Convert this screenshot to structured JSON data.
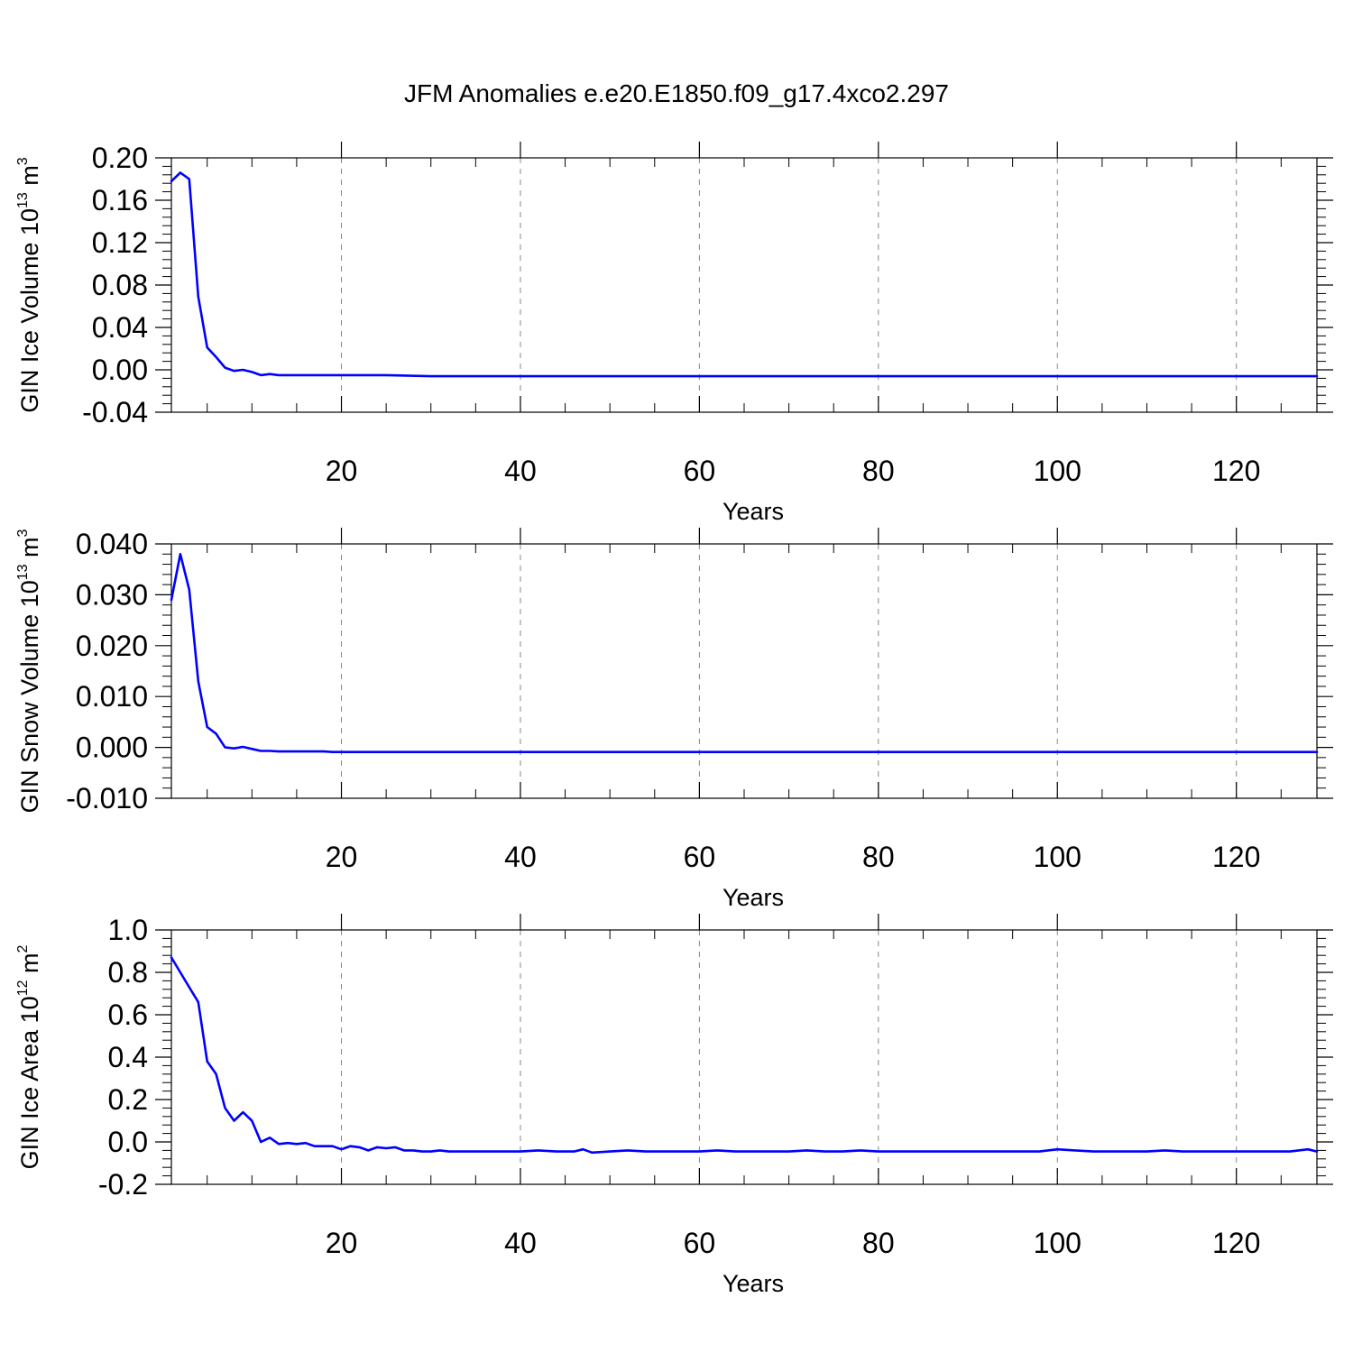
{
  "title": "JFM Anomalies e.e20.E1850.f09_g17.4xco2.297",
  "colors": {
    "line": "#0000ff",
    "axis": "#000000",
    "grid": "#888888"
  },
  "chart_data": [
    {
      "type": "line",
      "ylabel": {
        "text": "GIN Ice Volume 10",
        "sup": "13",
        "unit": " m",
        "unit_sup": "3"
      },
      "xlabel": "Years",
      "xlim": [
        1,
        129
      ],
      "ylim": [
        -0.04,
        0.2
      ],
      "xticks": [
        20,
        40,
        60,
        80,
        100,
        120
      ],
      "xtick_labels": [
        "20",
        "40",
        "60",
        "80",
        "100",
        "120"
      ],
      "yticks": [
        -0.04,
        0.0,
        0.04,
        0.08,
        0.12,
        0.16,
        0.2
      ],
      "ytick_labels": [
        "-0.04",
        "0.00",
        "0.04",
        "0.08",
        "0.12",
        "0.16",
        "0.20"
      ],
      "grid": "x-dashed",
      "series": [
        {
          "x": [
            1,
            2,
            3,
            4,
            5,
            6,
            7,
            8,
            9,
            10,
            11,
            12,
            13,
            14,
            15,
            16,
            17,
            18,
            19,
            20,
            22,
            25,
            30,
            40,
            50,
            60,
            70,
            80,
            90,
            100,
            110,
            120,
            129
          ],
          "values": [
            0.178,
            0.186,
            0.18,
            0.069,
            0.021,
            0.012,
            0.002,
            -0.001,
            0.0,
            -0.002,
            -0.005,
            -0.004,
            -0.005,
            -0.005,
            -0.005,
            -0.005,
            -0.005,
            -0.005,
            -0.005,
            -0.005,
            -0.005,
            -0.005,
            -0.006,
            -0.006,
            -0.006,
            -0.006,
            -0.006,
            -0.006,
            -0.006,
            -0.006,
            -0.006,
            -0.006,
            -0.006
          ]
        }
      ]
    },
    {
      "type": "line",
      "ylabel": {
        "text": "GIN Snow Volume 10",
        "sup": "13",
        "unit": " m",
        "unit_sup": "3"
      },
      "xlabel": "Years",
      "xlim": [
        1,
        129
      ],
      "ylim": [
        -0.01,
        0.04
      ],
      "xticks": [
        20,
        40,
        60,
        80,
        100,
        120
      ],
      "xtick_labels": [
        "20",
        "40",
        "60",
        "80",
        "100",
        "120"
      ],
      "yticks": [
        -0.01,
        0.0,
        0.01,
        0.02,
        0.03,
        0.04
      ],
      "ytick_labels": [
        "-0.010",
        "0.000",
        "0.010",
        "0.020",
        "0.030",
        "0.040"
      ],
      "grid": "x-dashed",
      "series": [
        {
          "x": [
            1,
            2,
            3,
            4,
            5,
            6,
            7,
            8,
            9,
            10,
            11,
            12,
            13,
            14,
            15,
            16,
            17,
            18,
            19,
            20,
            22,
            25,
            30,
            40,
            50,
            60,
            70,
            80,
            90,
            100,
            110,
            120,
            129
          ],
          "values": [
            0.029,
            0.038,
            0.031,
            0.013,
            0.004,
            0.0027,
            0.0,
            -0.0002,
            0.0001,
            -0.0003,
            -0.0007,
            -0.0007,
            -0.0008,
            -0.0008,
            -0.0008,
            -0.0008,
            -0.0008,
            -0.0008,
            -0.0009,
            -0.0009,
            -0.0009,
            -0.0009,
            -0.0009,
            -0.0009,
            -0.0009,
            -0.0009,
            -0.0009,
            -0.0009,
            -0.0009,
            -0.0009,
            -0.0009,
            -0.0009,
            -0.0009
          ]
        }
      ]
    },
    {
      "type": "line",
      "ylabel": {
        "text": "GIN Ice Area 10",
        "sup": "12",
        "unit": " m",
        "unit_sup": "2"
      },
      "xlabel": "Years",
      "xlim": [
        1,
        129
      ],
      "ylim": [
        -0.2,
        1.0
      ],
      "xticks": [
        20,
        40,
        60,
        80,
        100,
        120
      ],
      "xtick_labels": [
        "20",
        "40",
        "60",
        "80",
        "100",
        "120"
      ],
      "yticks": [
        -0.2,
        0.0,
        0.2,
        0.4,
        0.6,
        0.8,
        1.0
      ],
      "ytick_labels": [
        "-0.2",
        "0.0",
        "0.2",
        "0.4",
        "0.6",
        "0.8",
        "1.0"
      ],
      "grid": "x-dashed",
      "series": [
        {
          "x": [
            1,
            2,
            3,
            4,
            5,
            6,
            7,
            8,
            9,
            10,
            11,
            12,
            13,
            14,
            15,
            16,
            17,
            18,
            19,
            20,
            21,
            22,
            23,
            24,
            25,
            26,
            27,
            28,
            29,
            30,
            31,
            32,
            34,
            36,
            38,
            40,
            42,
            44,
            46,
            47,
            48,
            50,
            52,
            54,
            56,
            58,
            60,
            62,
            64,
            66,
            68,
            70,
            72,
            74,
            76,
            78,
            80,
            82,
            84,
            86,
            88,
            90,
            92,
            94,
            96,
            98,
            100,
            102,
            104,
            106,
            108,
            110,
            112,
            114,
            116,
            118,
            120,
            122,
            124,
            126,
            128,
            129
          ],
          "values": [
            0.87,
            0.8,
            0.73,
            0.66,
            0.38,
            0.32,
            0.16,
            0.1,
            0.14,
            0.1,
            0.0,
            0.02,
            -0.01,
            -0.005,
            -0.01,
            -0.005,
            -0.02,
            -0.02,
            -0.02,
            -0.035,
            -0.02,
            -0.025,
            -0.04,
            -0.025,
            -0.03,
            -0.025,
            -0.04,
            -0.04,
            -0.045,
            -0.045,
            -0.04,
            -0.045,
            -0.045,
            -0.045,
            -0.045,
            -0.045,
            -0.04,
            -0.045,
            -0.045,
            -0.035,
            -0.05,
            -0.045,
            -0.04,
            -0.045,
            -0.045,
            -0.045,
            -0.045,
            -0.04,
            -0.045,
            -0.045,
            -0.045,
            -0.045,
            -0.04,
            -0.045,
            -0.045,
            -0.04,
            -0.045,
            -0.045,
            -0.045,
            -0.045,
            -0.045,
            -0.045,
            -0.045,
            -0.045,
            -0.045,
            -0.045,
            -0.035,
            -0.04,
            -0.045,
            -0.045,
            -0.045,
            -0.045,
            -0.04,
            -0.045,
            -0.045,
            -0.045,
            -0.045,
            -0.045,
            -0.045,
            -0.045,
            -0.035,
            -0.045
          ]
        }
      ]
    }
  ]
}
